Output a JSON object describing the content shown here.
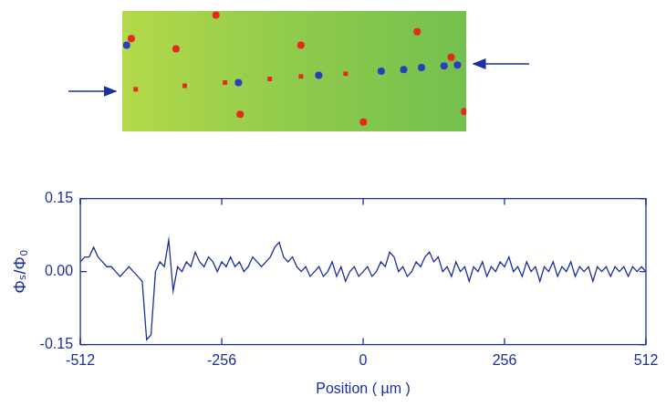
{
  "chart_data": [
    {
      "type": "scatter",
      "xlim": [
        -512,
        512
      ],
      "ylim": [
        -186,
        186
      ],
      "tick_labels": false,
      "grid": false,
      "series": [
        {
          "color": "#e8281e",
          "marker": "circle",
          "x": [
            -352,
            -233,
            20,
            366,
            467,
            507,
            206,
            -161,
            -485
          ],
          "values": [
            69,
            173,
            80,
            122,
            43,
            -125,
            -157,
            -133,
            101
          ]
        },
        {
          "color": "#e8281e",
          "marker": "rect",
          "x": [
            -472,
            -326,
            -206,
            -73,
            20,
            153
          ],
          "values": [
            -56,
            -45,
            -35,
            -24,
            -16,
            -8
          ]
        },
        {
          "color": "#2a3fbf",
          "marker": "circle",
          "x": [
            -499,
            -166,
            73,
            259,
            326,
            379,
            446,
            486
          ],
          "values": [
            80,
            -35,
            -13,
            0,
            5,
            11,
            16,
            19
          ]
        }
      ]
    },
    {
      "type": "line",
      "xlabel": "Position ( µm )",
      "ylabel": "Φₛ/Φ₀",
      "xlim": [
        -512,
        512
      ],
      "xticks": [
        -512,
        -256,
        0,
        256,
        512
      ],
      "ylim": [
        -0.15,
        0.15
      ],
      "yticks": [
        -0.15,
        {
          "value": 0,
          "label": "0.00"
        },
        0.15
      ],
      "grid": false,
      "series": [
        {
          "color": "#1c2f9e",
          "line_style": "solid",
          "x": [
            -512,
            -504,
            -496,
            -488,
            -480,
            -472,
            -464,
            -456,
            -448,
            -440,
            -432,
            -424,
            -416,
            -408,
            -400,
            -392,
            -384,
            -376,
            -368,
            -360,
            -352,
            -344,
            -336,
            -328,
            -320,
            -312,
            -304,
            -296,
            -288,
            -280,
            -272,
            -264,
            -256,
            -248,
            -240,
            -232,
            -224,
            -216,
            -208,
            -200,
            -192,
            -184,
            -176,
            -168,
            -160,
            -152,
            -144,
            -136,
            -128,
            -120,
            -112,
            -104,
            -96,
            -88,
            -80,
            -72,
            -64,
            -56,
            -48,
            -40,
            -32,
            -24,
            -16,
            -8,
            0,
            8,
            16,
            24,
            32,
            40,
            48,
            56,
            64,
            72,
            80,
            88,
            96,
            104,
            112,
            120,
            128,
            136,
            144,
            152,
            160,
            168,
            176,
            184,
            192,
            200,
            208,
            216,
            224,
            232,
            240,
            248,
            256,
            264,
            272,
            280,
            288,
            296,
            304,
            312,
            320,
            328,
            336,
            344,
            352,
            360,
            368,
            376,
            384,
            392,
            400,
            408,
            416,
            424,
            432,
            440,
            448,
            456,
            464,
            472,
            480,
            488,
            496,
            504,
            512
          ],
          "values": [
            0.02,
            0.03,
            0.03,
            0.05,
            0.03,
            0.02,
            0.01,
            0.01,
            0.0,
            -0.01,
            0.0,
            0.01,
            0.0,
            -0.01,
            -0.02,
            -0.14,
            -0.13,
            0.0,
            0.02,
            0.01,
            0.065,
            -0.04,
            0.01,
            0.0,
            0.02,
            0.01,
            0.04,
            0.02,
            0.01,
            0.03,
            0.02,
            0.0,
            0.02,
            0.01,
            0.03,
            0.01,
            0.02,
            0.0,
            0.01,
            0.03,
            0.02,
            0.01,
            0.02,
            0.03,
            0.05,
            0.06,
            0.03,
            0.02,
            0.03,
            0.01,
            0.0,
            0.01,
            -0.01,
            0.0,
            0.01,
            -0.01,
            0.0,
            0.02,
            -0.01,
            0.01,
            -0.02,
            0.0,
            0.01,
            -0.01,
            0.0,
            0.01,
            -0.01,
            0.0,
            0.02,
            0.01,
            0.04,
            0.03,
            0.0,
            0.01,
            -0.01,
            0.0,
            0.02,
            0.01,
            0.03,
            0.04,
            0.02,
            0.03,
            0.0,
            0.01,
            -0.01,
            0.02,
            0.0,
            0.01,
            -0.02,
            0.01,
            0.0,
            0.02,
            -0.01,
            0.01,
            0.0,
            0.02,
            0.01,
            0.03,
            0.0,
            0.01,
            -0.01,
            0.02,
            0.0,
            0.01,
            -0.02,
            0.01,
            0.0,
            0.02,
            -0.01,
            0.01,
            0.0,
            0.02,
            -0.01,
            0.01,
            0.0,
            0.01,
            -0.02,
            0.01,
            0.0,
            0.01,
            -0.01,
            0.01,
            0.0,
            0.01,
            -0.01,
            0.01,
            0.0,
            0.01,
            0.0
          ]
        }
      ]
    }
  ]
}
